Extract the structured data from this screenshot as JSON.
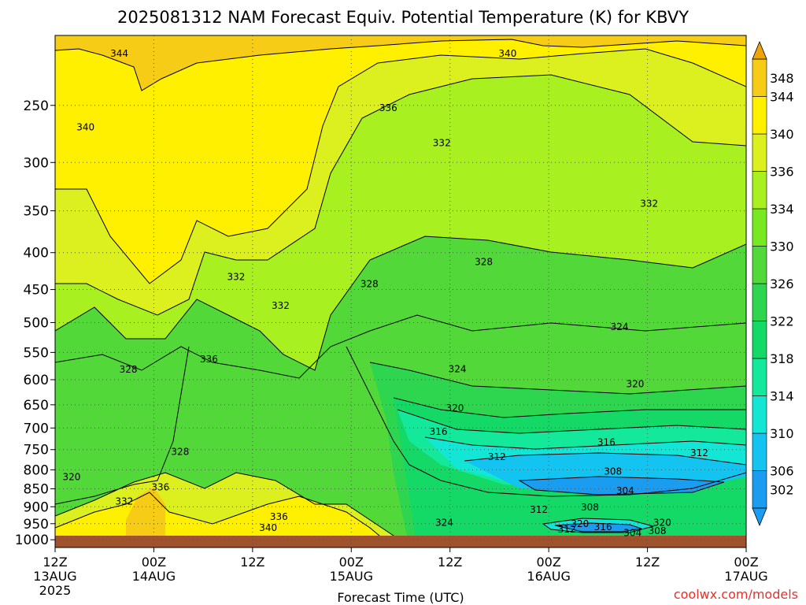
{
  "chart_data": {
    "type": "heatmap",
    "title": "2025081312 NAM Forecast Equiv. Potential Temperature (K) for KBVY",
    "xlabel": "Forecast Time (UTC)",
    "ylabel": "",
    "credit": "coolwx.com/models",
    "x_ticks": [
      {
        "hour": 0,
        "line1": "12Z",
        "line2": "13AUG",
        "line3": "2025"
      },
      {
        "hour": 12,
        "line1": "00Z",
        "line2": "14AUG",
        "line3": ""
      },
      {
        "hour": 24,
        "line1": "12Z",
        "line2": "",
        "line3": ""
      },
      {
        "hour": 36,
        "line1": "00Z",
        "line2": "15AUG",
        "line3": ""
      },
      {
        "hour": 48,
        "line1": "12Z",
        "line2": "",
        "line3": ""
      },
      {
        "hour": 60,
        "line1": "00Z",
        "line2": "16AUG",
        "line3": ""
      },
      {
        "hour": 72,
        "line1": "12Z",
        "line2": "",
        "line3": ""
      },
      {
        "hour": 84,
        "line1": "00Z",
        "line2": "17AUG",
        "line3": ""
      }
    ],
    "xlim_hours": [
      0,
      84
    ],
    "y_ticks": [
      250,
      300,
      350,
      400,
      450,
      500,
      550,
      600,
      650,
      700,
      750,
      800,
      850,
      900,
      950,
      1000
    ],
    "ylim_hPa": [
      200,
      1025
    ],
    "y_scale": "log-pressure",
    "grid": "dotted",
    "colorbar": {
      "levels": [
        302,
        306,
        310,
        314,
        318,
        322,
        326,
        330,
        334,
        336,
        340,
        344,
        348
      ],
      "colors": [
        "#1a9df0",
        "#13c3f0",
        "#14e6d6",
        "#14e89a",
        "#14d966",
        "#2ed650",
        "#52d838",
        "#78e820",
        "#a8f020",
        "#dcf020",
        "#fff000",
        "#f6cc16",
        "#eca30c"
      ]
    },
    "contour_labels": [
      {
        "text": "344",
        "hour": 7.8,
        "p": 212
      },
      {
        "text": "340",
        "hour": 3.7,
        "p": 268
      },
      {
        "text": "340",
        "hour": 55.0,
        "p": 212
      },
      {
        "text": "336",
        "hour": 40.5,
        "p": 252
      },
      {
        "text": "332",
        "hour": 47.0,
        "p": 282
      },
      {
        "text": "332",
        "hour": 72.2,
        "p": 342
      },
      {
        "text": "332",
        "hour": 22.0,
        "p": 432
      },
      {
        "text": "332",
        "hour": 27.4,
        "p": 474
      },
      {
        "text": "328",
        "hour": 38.2,
        "p": 442
      },
      {
        "text": "328",
        "hour": 52.1,
        "p": 412
      },
      {
        "text": "328",
        "hour": 8.9,
        "p": 581
      },
      {
        "text": "336",
        "hour": 18.7,
        "p": 562
      },
      {
        "text": "324",
        "hour": 68.6,
        "p": 507
      },
      {
        "text": "324",
        "hour": 48.9,
        "p": 580
      },
      {
        "text": "320",
        "hour": 70.5,
        "p": 608
      },
      {
        "text": "320",
        "hour": 48.6,
        "p": 657
      },
      {
        "text": "316",
        "hour": 46.6,
        "p": 708
      },
      {
        "text": "316",
        "hour": 67.0,
        "p": 733
      },
      {
        "text": "312",
        "hour": 53.7,
        "p": 768
      },
      {
        "text": "312",
        "hour": 78.3,
        "p": 758
      },
      {
        "text": "308",
        "hour": 67.8,
        "p": 804
      },
      {
        "text": "304",
        "hour": 69.3,
        "p": 855
      },
      {
        "text": "320",
        "hour": 2.0,
        "p": 818
      },
      {
        "text": "328",
        "hour": 15.2,
        "p": 755
      },
      {
        "text": "336",
        "hour": 12.8,
        "p": 846
      },
      {
        "text": "332",
        "hour": 8.4,
        "p": 885
      },
      {
        "text": "336",
        "hour": 27.2,
        "p": 929
      },
      {
        "text": "340",
        "hour": 25.9,
        "p": 962
      },
      {
        "text": "324",
        "hour": 47.3,
        "p": 947
      },
      {
        "text": "312",
        "hour": 58.8,
        "p": 908
      },
      {
        "text": "308",
        "hour": 65.0,
        "p": 902
      },
      {
        "text": "312",
        "hour": 62.2,
        "p": 967
      },
      {
        "text": "320",
        "hour": 63.8,
        "p": 951
      },
      {
        "text": "316",
        "hour": 66.6,
        "p": 960
      },
      {
        "text": "304",
        "hour": 70.2,
        "p": 978
      },
      {
        "text": "308",
        "hour": 73.2,
        "p": 972
      },
      {
        "text": "320",
        "hour": 73.8,
        "p": 947
      }
    ]
  }
}
